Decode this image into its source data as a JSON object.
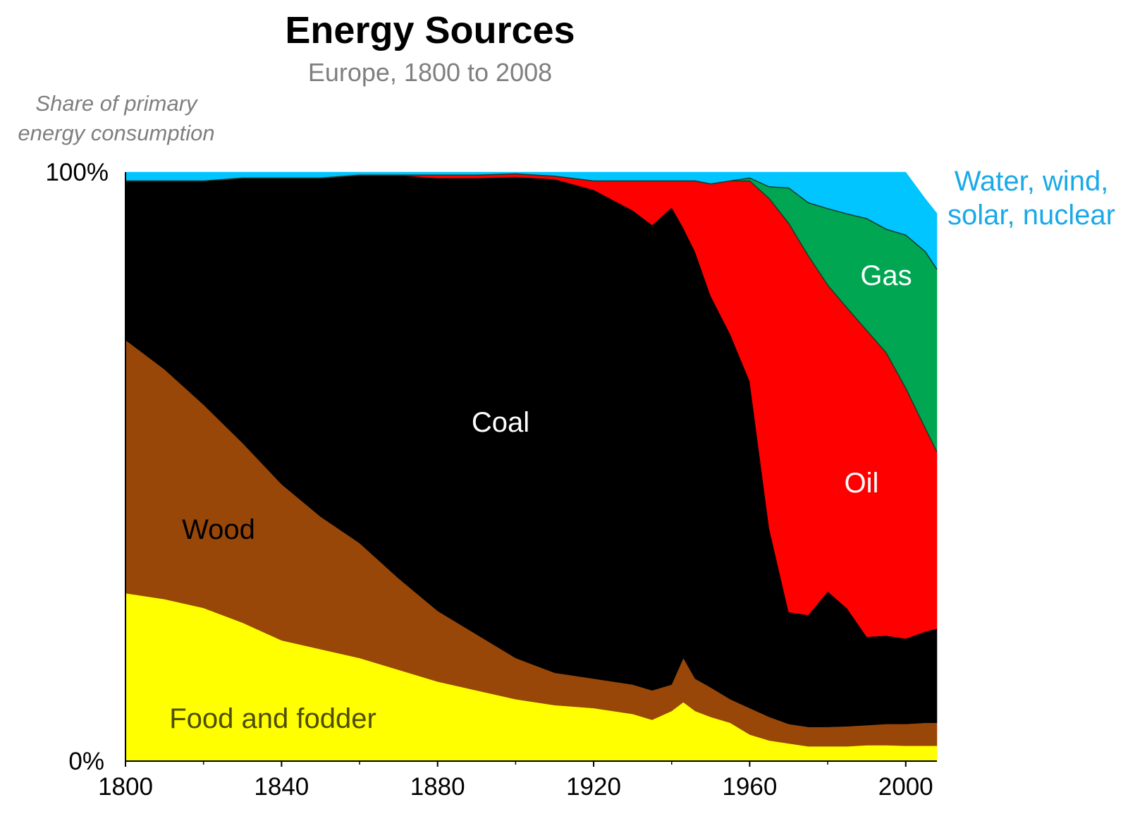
{
  "chart_data": {
    "type": "area",
    "title": "Energy Sources",
    "subtitle": "Europe, 1800 to 2008",
    "ylabel": "Share of primary energy consumption",
    "xlabel": "",
    "x_ticks": [
      "1800",
      "1840",
      "1880",
      "1920",
      "1960",
      "2000"
    ],
    "y_ticks": [
      "0%",
      "100%"
    ],
    "xlim": [
      1800,
      2008
    ],
    "ylim": [
      0,
      100
    ],
    "stacked": true,
    "years": [
      1800,
      1810,
      1820,
      1830,
      1840,
      1850,
      1860,
      1870,
      1880,
      1890,
      1900,
      1910,
      1920,
      1930,
      1935,
      1940,
      1943,
      1946,
      1950,
      1955,
      1960,
      1965,
      1970,
      1975,
      1980,
      1985,
      1990,
      1995,
      2000,
      2005,
      2008
    ],
    "series": [
      {
        "name": "Food and fodder",
        "color": "#ffff00",
        "values": [
          28.5,
          27.5,
          26,
          23.5,
          20.5,
          19,
          17.5,
          15.5,
          13.5,
          12,
          10.5,
          9.5,
          9,
          8,
          7,
          8.5,
          10,
          8.5,
          7.5,
          6.5,
          4.5,
          3.5,
          3,
          2.5,
          2.5,
          2.5,
          2.7,
          2.7,
          2.6,
          2.6,
          2.6
        ]
      },
      {
        "name": "Wood",
        "color": "#994708",
        "values": [
          43,
          39,
          34.5,
          30.5,
          26.5,
          22.5,
          19.5,
          15.5,
          12,
          9.5,
          7,
          5.5,
          5,
          5,
          5,
          4.5,
          7.5,
          5.5,
          5,
          4,
          4.5,
          4,
          3.3,
          3.3,
          3.3,
          3.4,
          3.4,
          3.6,
          3.7,
          3.9,
          3.9
        ]
      },
      {
        "name": "Coal",
        "color": "#000000",
        "values": [
          27,
          32,
          38,
          45,
          52,
          57.5,
          62.5,
          68.5,
          73.5,
          77.5,
          81.7,
          83.8,
          83,
          80.5,
          79,
          81,
          73,
          72.5,
          66.5,
          62,
          55.5,
          32,
          19,
          19,
          23,
          20,
          15,
          15,
          14.5,
          15.5,
          16
        ]
      },
      {
        "name": "Oil",
        "color": "#ff0000",
        "values": [
          0,
          0,
          0,
          0,
          0,
          0,
          0,
          0,
          0.5,
          0.5,
          0.5,
          0.5,
          1.5,
          5,
          7.5,
          4.5,
          8,
          12,
          19,
          26,
          34,
          56,
          66,
          61,
          52,
          51,
          52,
          48,
          42.5,
          34.5,
          30
        ]
      },
      {
        "name": "Gas",
        "color": "#00a651",
        "values": [
          0,
          0,
          0,
          0,
          0,
          0,
          0,
          0,
          0,
          0,
          0,
          0,
          0,
          0,
          0,
          0,
          0,
          0,
          0,
          0,
          0.5,
          2,
          6,
          9,
          13,
          16,
          19,
          21,
          26,
          30,
          31
        ]
      },
      {
        "name": "Water, wind, solar, nuclear",
        "color": "#00c5ff",
        "values": [
          1.5,
          1.5,
          1.5,
          1,
          1,
          1,
          0.5,
          0.5,
          0.5,
          0.5,
          0.3,
          0.7,
          1.5,
          1.5,
          1.5,
          1.5,
          1.5,
          1.5,
          2,
          1.5,
          1,
          2.5,
          2.7,
          5.2,
          6.2,
          7.1,
          7.9,
          9.7,
          10.7,
          9,
          9.5
        ]
      }
    ],
    "series_labels": [
      {
        "text": "Food and fodder",
        "color": "#4d4d00",
        "position": "inside-bottom"
      },
      {
        "text": "Wood",
        "color": "#000000",
        "position": "inside-left"
      },
      {
        "text": "Coal",
        "color": "#ffffff",
        "position": "inside-center"
      },
      {
        "text": "Oil",
        "color": "#ffffff",
        "position": "inside-right"
      },
      {
        "text": "Gas",
        "color": "#ffffff",
        "position": "inside-top-right"
      },
      {
        "text": "Water, wind, solar, nuclear",
        "color": "#1aa9e8",
        "position": "outside-right"
      }
    ],
    "grid": false,
    "legend": "none"
  }
}
